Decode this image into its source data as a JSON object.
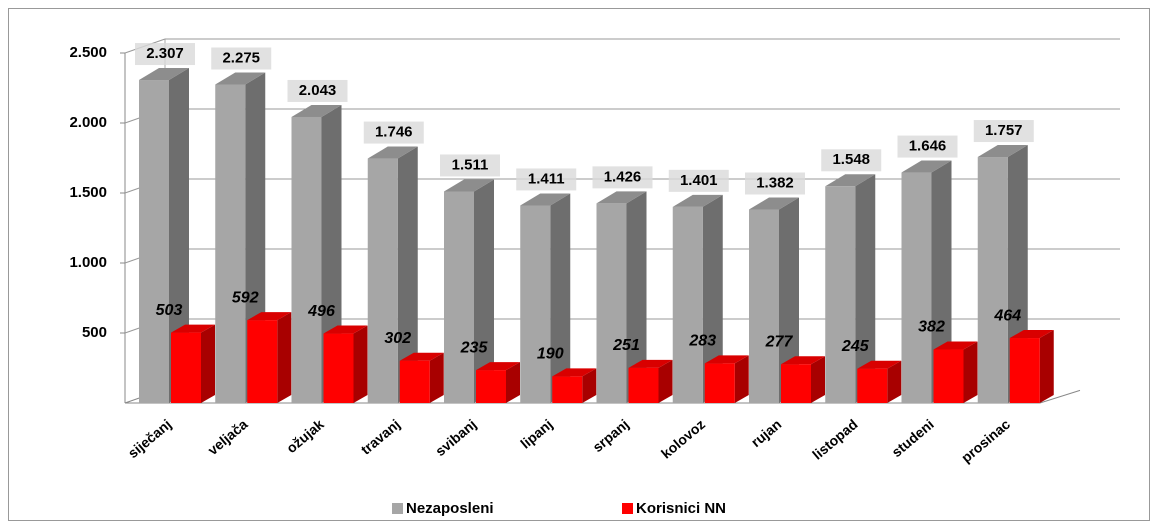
{
  "chart_data": {
    "type": "bar3d",
    "categories": [
      "siječanj",
      "veljača",
      "ožujak",
      "travanj",
      "svibanj",
      "lipanj",
      "srpanj",
      "kolovoz",
      "rujan",
      "listopad",
      "studeni",
      "prosinac"
    ],
    "series": [
      {
        "name": "Nezaposleni",
        "color": "#a6a6a6",
        "values": [
          2307,
          2275,
          2043,
          1746,
          1511,
          1411,
          1426,
          1401,
          1382,
          1548,
          1646,
          1757
        ],
        "value_labels": [
          "2.307",
          "2.275",
          "2.043",
          "1.746",
          "1.511",
          "1.411",
          "1.426",
          "1.401",
          "1.382",
          "1.548",
          "1.646",
          "1.757"
        ]
      },
      {
        "name": "Korisnici NN",
        "color": "#ff0000",
        "values": [
          503,
          592,
          496,
          302,
          235,
          190,
          251,
          283,
          277,
          245,
          382,
          464
        ]
      }
    ],
    "ylim": [
      0,
      2500
    ],
    "yticks": [
      500,
      {
        "value": 1000,
        "label": "1.000"
      },
      {
        "value": 1500,
        "label": "1.500"
      },
      {
        "value": 2000,
        "label": "2.000"
      },
      {
        "value": 2500,
        "label": "2.500"
      }
    ],
    "grid": true,
    "legend": "bottom"
  }
}
